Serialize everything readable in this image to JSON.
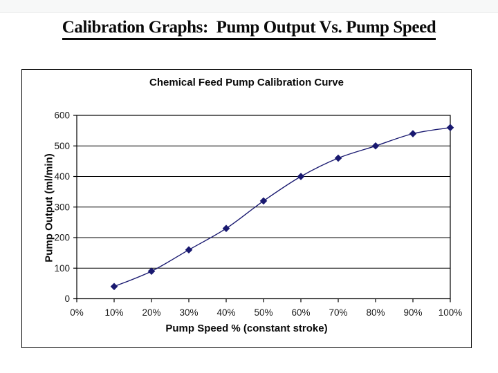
{
  "page": {
    "title": "Calibration Graphs:  Pump Output Vs. Pump Speed"
  },
  "chart_data": {
    "type": "line",
    "title": "Chemical Feed Pump Calibration Curve",
    "xlabel": "Pump Speed % (constant stroke)",
    "ylabel": "Pump Output (ml/min)",
    "x_tick_labels": [
      "0%",
      "10%",
      "20%",
      "30%",
      "40%",
      "50%",
      "60%",
      "70%",
      "80%",
      "90%",
      "100%"
    ],
    "series": [
      {
        "name": "Pump Output",
        "x_percent": [
          10,
          20,
          30,
          40,
          50,
          60,
          70,
          80,
          90,
          100
        ],
        "values": [
          40,
          90,
          160,
          230,
          320,
          400,
          460,
          500,
          540,
          560
        ]
      }
    ],
    "xlim_percent": [
      0,
      100
    ],
    "ylim": [
      0,
      600
    ],
    "y_tick_labels": [
      "0",
      "100",
      "200",
      "300",
      "400",
      "500",
      "600"
    ],
    "y_tick_step": 100,
    "grid": "horizontal",
    "legend_position": "none",
    "marker": "diamond",
    "series_color": "#191970",
    "grid_color": "#000000",
    "axis_color": "#000000",
    "text_color": "#1a1a1a"
  }
}
